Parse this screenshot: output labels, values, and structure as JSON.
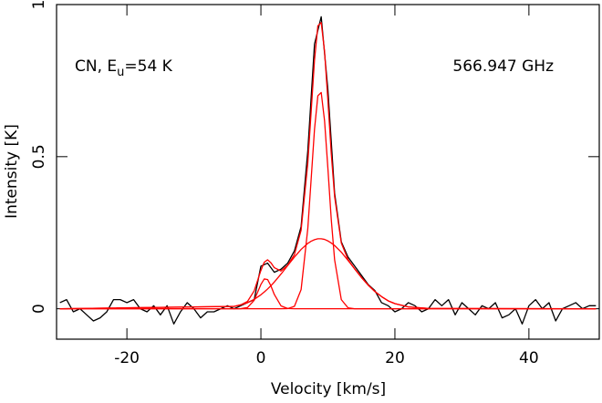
{
  "chart_data": {
    "type": "line",
    "xlabel": "Velocity  [km/s]",
    "ylabel": "Intensity [K]",
    "annotations": [
      {
        "text": "CN, E",
        "subscript": "u",
        "text_after": "=54 K"
      },
      {
        "text": "566.947 GHz"
      }
    ],
    "xlim": [
      -30.5,
      50.5
    ],
    "ylim": [
      -0.1,
      1.0
    ],
    "xticks": [
      -20,
      0,
      20,
      40
    ],
    "yticks": [
      0,
      0.5,
      1
    ],
    "x": [
      -30,
      -29,
      -28,
      -27,
      -26,
      -25,
      -24,
      -23,
      -22,
      -21,
      -20,
      -19,
      -18,
      -17,
      -16,
      -15,
      -14,
      -13,
      -12,
      -11,
      -10,
      -9,
      -8,
      -7,
      -6,
      -5,
      -4,
      -3,
      -2,
      -1,
      0,
      1,
      2,
      3,
      4,
      5,
      6,
      7,
      8,
      9,
      10,
      11,
      12,
      13,
      14,
      15,
      16,
      17,
      18,
      19,
      20,
      21,
      22,
      23,
      24,
      25,
      26,
      27,
      28,
      29,
      30,
      31,
      32,
      33,
      34,
      35,
      36,
      37,
      38,
      39,
      40,
      41,
      42,
      43,
      44,
      45,
      46,
      47,
      48,
      49,
      50
    ],
    "series": [
      {
        "color": "#000000",
        "values": [
          0.02,
          0.03,
          -0.01,
          0.0,
          -0.02,
          -0.04,
          -0.03,
          -0.01,
          0.03,
          0.03,
          0.02,
          0.03,
          0.0,
          -0.01,
          0.01,
          -0.02,
          0.01,
          -0.05,
          -0.01,
          0.02,
          0.0,
          -0.03,
          -0.01,
          -0.01,
          0.0,
          0.01,
          0.0,
          0.01,
          0.02,
          0.03,
          0.14,
          0.15,
          0.12,
          0.13,
          0.15,
          0.19,
          0.27,
          0.52,
          0.87,
          0.96,
          0.72,
          0.38,
          0.22,
          0.17,
          0.14,
          0.11,
          0.08,
          0.06,
          0.02,
          0.01,
          -0.01,
          0.0,
          0.02,
          0.01,
          -0.01,
          0.0,
          0.03,
          0.01,
          0.03,
          -0.02,
          0.02,
          0.0,
          -0.02,
          0.01,
          0.0,
          0.02,
          -0.03,
          -0.02,
          0.0,
          -0.05,
          0.01,
          0.03,
          0.0,
          0.02,
          -0.04,
          0.0,
          0.01,
          0.02,
          0.0,
          0.01,
          0.01
        ]
      }
    ],
    "fit_x": [
      -30,
      -4,
      -3,
      -2,
      -1,
      0,
      0.5,
      1,
      1.5,
      2,
      3,
      4,
      5,
      6,
      7,
      7.5,
      8,
      8.5,
      9,
      9.5,
      10,
      10.5,
      11,
      12,
      13,
      14,
      15,
      16,
      17,
      18,
      19,
      20,
      22,
      25,
      50
    ],
    "fit_series": [
      {
        "color": "#ff0000",
        "values": [
          0,
          0.008,
          0.013,
          0.024,
          0.059,
          0.126,
          0.153,
          0.161,
          0.151,
          0.135,
          0.124,
          0.143,
          0.178,
          0.258,
          0.479,
          0.648,
          0.817,
          0.93,
          0.941,
          0.846,
          0.684,
          0.51,
          0.369,
          0.216,
          0.162,
          0.131,
          0.103,
          0.078,
          0.057,
          0.04,
          0.026,
          0.017,
          0.006,
          0.001,
          0
        ]
      },
      {
        "color": "#ff0000",
        "values": [
          0,
          0,
          0.0002,
          0.004,
          0.028,
          0.08,
          0.098,
          0.096,
          0.075,
          0.047,
          0.0095,
          0.0008,
          0,
          0,
          0,
          0,
          0,
          0,
          0,
          0,
          0,
          0,
          0,
          0,
          0,
          0,
          0,
          0,
          0,
          0,
          0,
          0,
          0,
          0,
          0
        ]
      },
      {
        "color": "#ff0000",
        "values": [
          0,
          0,
          0,
          0,
          0,
          0,
          0,
          0,
          0,
          0,
          0,
          0.0006,
          0.008,
          0.063,
          0.264,
          0.426,
          0.59,
          0.7,
          0.711,
          0.618,
          0.461,
          0.294,
          0.161,
          0.03,
          0.003,
          0,
          0,
          0,
          0,
          0,
          0,
          0,
          0,
          0,
          0
        ]
      },
      {
        "color": "#ff0000",
        "values": [
          0,
          0.0076,
          0.0127,
          0.02,
          0.031,
          0.046,
          0.055,
          0.065,
          0.076,
          0.088,
          0.114,
          0.142,
          0.17,
          0.195,
          0.215,
          0.222,
          0.227,
          0.23,
          0.23,
          0.228,
          0.223,
          0.216,
          0.208,
          0.186,
          0.159,
          0.131,
          0.103,
          0.078,
          0.057,
          0.04,
          0.026,
          0.017,
          0.006,
          0.001,
          0
        ]
      }
    ]
  }
}
